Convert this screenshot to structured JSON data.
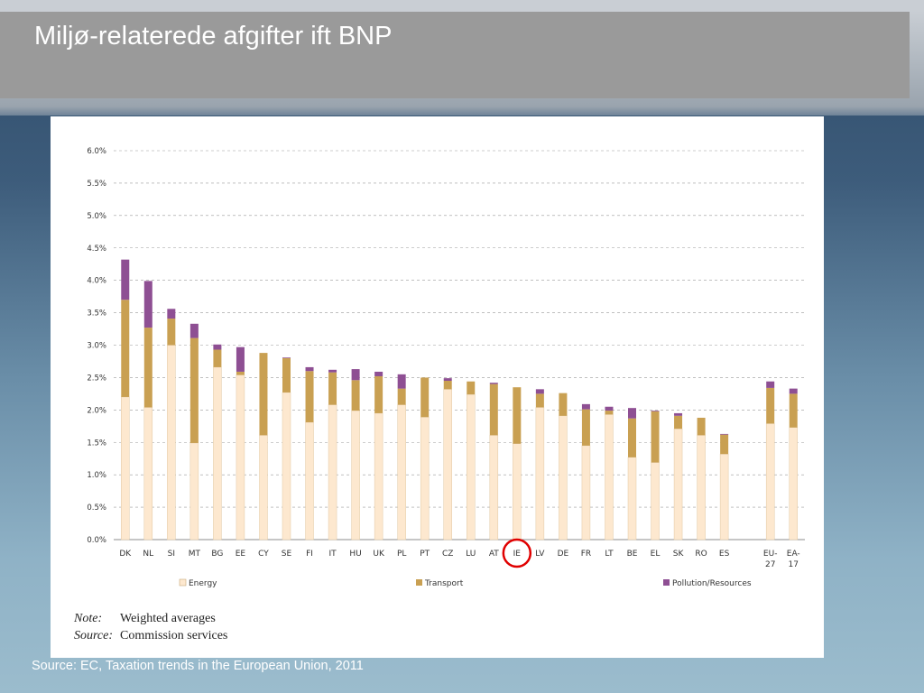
{
  "slide": {
    "title": "Miljø-relaterede afgifter ift BNP",
    "source": "Source: EC, Taxation trends in the European Union, 2011"
  },
  "notes": {
    "note_key": "Note:",
    "note_value": "Weighted averages",
    "source_key": "Source:",
    "source_value": "Commission services"
  },
  "colors": {
    "energy": "#fde8cf",
    "transport": "#c9a052",
    "pollution": "#8e4f93",
    "highlight": "#e00000"
  },
  "chart_data": {
    "type": "bar",
    "stacked": true,
    "categories": [
      "DK",
      "NL",
      "SI",
      "MT",
      "BG",
      "EE",
      "CY",
      "SE",
      "FI",
      "IT",
      "HU",
      "UK",
      "PL",
      "PT",
      "CZ",
      "LU",
      "AT",
      "IE",
      "LV",
      "DE",
      "FR",
      "LT",
      "BE",
      "EL",
      "SK",
      "RO",
      "ES",
      "EU-27",
      "EA-17"
    ],
    "series": [
      {
        "name": "Energy",
        "values": [
          2.2,
          2.04,
          3.0,
          1.49,
          2.66,
          2.54,
          1.61,
          2.27,
          1.81,
          2.08,
          1.99,
          1.95,
          2.08,
          1.89,
          2.32,
          2.24,
          1.61,
          1.48,
          2.04,
          1.91,
          1.45,
          1.93,
          1.27,
          1.19,
          1.71,
          1.61,
          1.32,
          1.79,
          1.73
        ]
      },
      {
        "name": "Transport",
        "values": [
          1.5,
          1.23,
          0.41,
          1.62,
          0.27,
          0.05,
          1.27,
          0.53,
          0.79,
          0.5,
          0.47,
          0.57,
          0.25,
          0.61,
          0.13,
          0.2,
          0.79,
          0.87,
          0.21,
          0.35,
          0.56,
          0.06,
          0.6,
          0.79,
          0.2,
          0.27,
          0.3,
          0.55,
          0.52
        ]
      },
      {
        "name": "Pollution/Resources",
        "values": [
          0.62,
          0.72,
          0.15,
          0.22,
          0.08,
          0.38,
          0.0,
          0.01,
          0.06,
          0.04,
          0.17,
          0.07,
          0.22,
          0.0,
          0.04,
          0.0,
          0.02,
          0.0,
          0.07,
          0.0,
          0.08,
          0.06,
          0.16,
          0.01,
          0.04,
          0.0,
          0.01,
          0.1,
          0.08
        ]
      }
    ],
    "gaps_before": {
      "EU-27": 1
    },
    "category_labels": [
      "DK",
      "NL",
      "SI",
      "MT",
      "BG",
      "EE",
      "CY",
      "SE",
      "FI",
      "IT",
      "HU",
      "UK",
      "PL",
      "PT",
      "CZ",
      "LU",
      "AT",
      "IE",
      "LV",
      "DE",
      "FR",
      "LT",
      "BE",
      "EL",
      "SK",
      "RO",
      "ES",
      "EU-\n27",
      "EA-\n17"
    ],
    "highlighted_category": "IE",
    "ylim": [
      0,
      6.0
    ],
    "yticks": [
      "0.0%",
      "0.5%",
      "1.0%",
      "1.5%",
      "2.0%",
      "2.5%",
      "3.0%",
      "3.5%",
      "4.0%",
      "4.5%",
      "5.0%",
      "5.5%",
      "6.0%"
    ],
    "grid": true,
    "legend_position": "bottom",
    "title": "",
    "xlabel": "",
    "ylabel": ""
  }
}
